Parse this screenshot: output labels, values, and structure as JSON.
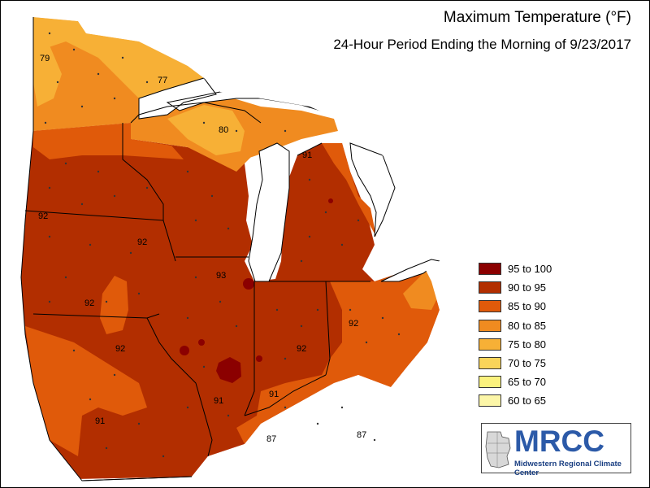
{
  "title": "Maximum Temperature (°F)",
  "subtitle": "24-Hour Period Ending the Morning of 9/23/2017",
  "legend": [
    {
      "label": "95 to 100",
      "color": "#8b0000"
    },
    {
      "label": "90 to 95",
      "color": "#b22e00"
    },
    {
      "label": "85 to 90",
      "color": "#e05a0a"
    },
    {
      "label": "80 to 85",
      "color": "#f08b20"
    },
    {
      "label": "75 to 80",
      "color": "#f7b036"
    },
    {
      "label": "70 to 75",
      "color": "#f9d45a"
    },
    {
      "label": "65 to 70",
      "color": "#fbf27e"
    },
    {
      "label": "60 to 65",
      "color": "#fcf6a8"
    }
  ],
  "station_labels": [
    "79",
    "77",
    "80",
    "91",
    "92",
    "92",
    "93",
    "92",
    "92",
    "92",
    "92",
    "91",
    "91",
    "91",
    "87",
    "87"
  ],
  "logo": {
    "name": "MRCC",
    "subtitle": "Midwestern Regional Climate Center"
  }
}
